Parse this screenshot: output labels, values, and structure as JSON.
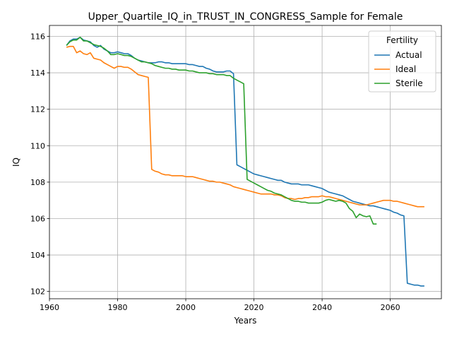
{
  "chart_data": {
    "type": "line",
    "title": "Upper_Quartile_IQ_in_TRUST_IN_CONGRESS_Sample for Female",
    "xlabel": "Years",
    "ylabel": "IQ",
    "xlim": [
      1960,
      2075
    ],
    "ylim": [
      101.6,
      116.6
    ],
    "xticks": [
      1960,
      1980,
      2000,
      2020,
      2040,
      2060
    ],
    "yticks": [
      102,
      104,
      106,
      108,
      110,
      112,
      114,
      116
    ],
    "grid": true,
    "legend": {
      "title": "Fertility",
      "placement": "top-right"
    },
    "series": [
      {
        "name": "Actual",
        "color": "#1f77b4",
        "points": [
          [
            1965,
            115.5
          ],
          [
            1966,
            115.75
          ],
          [
            1967,
            115.85
          ],
          [
            1968,
            115.85
          ],
          [
            1969,
            115.95
          ],
          [
            1970,
            115.8
          ],
          [
            1971,
            115.75
          ],
          [
            1972,
            115.7
          ],
          [
            1973,
            115.5
          ],
          [
            1974,
            115.4
          ],
          [
            1975,
            115.5
          ],
          [
            1976,
            115.3
          ],
          [
            1977,
            115.2
          ],
          [
            1978,
            115.1
          ],
          [
            1979,
            115.1
          ],
          [
            1980,
            115.15
          ],
          [
            1981,
            115.1
          ],
          [
            1982,
            115.05
          ],
          [
            1983,
            115.05
          ],
          [
            1984,
            114.95
          ],
          [
            1985,
            114.8
          ],
          [
            1986,
            114.7
          ],
          [
            1987,
            114.65
          ],
          [
            1988,
            114.6
          ],
          [
            1989,
            114.55
          ],
          [
            1990,
            114.55
          ],
          [
            1991,
            114.55
          ],
          [
            1992,
            114.6
          ],
          [
            1993,
            114.6
          ],
          [
            1994,
            114.55
          ],
          [
            1995,
            114.55
          ],
          [
            1996,
            114.5
          ],
          [
            1997,
            114.5
          ],
          [
            1998,
            114.5
          ],
          [
            1999,
            114.5
          ],
          [
            2000,
            114.5
          ],
          [
            2001,
            114.45
          ],
          [
            2002,
            114.45
          ],
          [
            2003,
            114.4
          ],
          [
            2004,
            114.35
          ],
          [
            2005,
            114.35
          ],
          [
            2006,
            114.25
          ],
          [
            2007,
            114.2
          ],
          [
            2008,
            114.1
          ],
          [
            2009,
            114.05
          ],
          [
            2010,
            114.05
          ],
          [
            2011,
            114.05
          ],
          [
            2012,
            114.1
          ],
          [
            2013,
            114.1
          ],
          [
            2014,
            113.95
          ],
          [
            2015,
            108.95
          ],
          [
            2016,
            108.85
          ],
          [
            2017,
            108.75
          ],
          [
            2018,
            108.65
          ],
          [
            2019,
            108.55
          ],
          [
            2020,
            108.45
          ],
          [
            2021,
            108.4
          ],
          [
            2022,
            108.35
          ],
          [
            2023,
            108.3
          ],
          [
            2024,
            108.25
          ],
          [
            2025,
            108.2
          ],
          [
            2026,
            108.15
          ],
          [
            2027,
            108.1
          ],
          [
            2028,
            108.1
          ],
          [
            2029,
            108.0
          ],
          [
            2030,
            107.95
          ],
          [
            2031,
            107.9
          ],
          [
            2032,
            107.9
          ],
          [
            2033,
            107.9
          ],
          [
            2034,
            107.85
          ],
          [
            2035,
            107.85
          ],
          [
            2036,
            107.85
          ],
          [
            2037,
            107.8
          ],
          [
            2038,
            107.75
          ],
          [
            2039,
            107.7
          ],
          [
            2040,
            107.65
          ],
          [
            2041,
            107.55
          ],
          [
            2042,
            107.45
          ],
          [
            2043,
            107.4
          ],
          [
            2044,
            107.35
          ],
          [
            2045,
            107.3
          ],
          [
            2046,
            107.25
          ],
          [
            2047,
            107.15
          ],
          [
            2048,
            107.05
          ],
          [
            2049,
            106.95
          ],
          [
            2050,
            106.9
          ],
          [
            2051,
            106.85
          ],
          [
            2052,
            106.8
          ],
          [
            2053,
            106.75
          ],
          [
            2054,
            106.7
          ],
          [
            2055,
            106.7
          ],
          [
            2056,
            106.65
          ],
          [
            2057,
            106.6
          ],
          [
            2058,
            106.55
          ],
          [
            2059,
            106.5
          ],
          [
            2060,
            106.45
          ],
          [
            2061,
            106.35
          ],
          [
            2062,
            106.3
          ],
          [
            2063,
            106.2
          ],
          [
            2064,
            106.15
          ],
          [
            2065,
            102.45
          ],
          [
            2066,
            102.4
          ],
          [
            2067,
            102.35
          ],
          [
            2068,
            102.35
          ],
          [
            2069,
            102.3
          ],
          [
            2070,
            102.3
          ]
        ]
      },
      {
        "name": "Ideal",
        "color": "#ff7f0e",
        "points": [
          [
            1965,
            115.4
          ],
          [
            1966,
            115.45
          ],
          [
            1967,
            115.45
          ],
          [
            1968,
            115.1
          ],
          [
            1969,
            115.2
          ],
          [
            1970,
            115.05
          ],
          [
            1971,
            115.0
          ],
          [
            1972,
            115.1
          ],
          [
            1973,
            114.8
          ],
          [
            1974,
            114.75
          ],
          [
            1975,
            114.7
          ],
          [
            1976,
            114.55
          ],
          [
            1977,
            114.45
          ],
          [
            1978,
            114.35
          ],
          [
            1979,
            114.25
          ],
          [
            1980,
            114.35
          ],
          [
            1981,
            114.35
          ],
          [
            1982,
            114.3
          ],
          [
            1983,
            114.3
          ],
          [
            1984,
            114.2
          ],
          [
            1985,
            114.05
          ],
          [
            1986,
            113.9
          ],
          [
            1987,
            113.85
          ],
          [
            1988,
            113.8
          ],
          [
            1989,
            113.75
          ],
          [
            1990,
            108.7
          ],
          [
            1991,
            108.6
          ],
          [
            1992,
            108.55
          ],
          [
            1993,
            108.45
          ],
          [
            1994,
            108.4
          ],
          [
            1995,
            108.4
          ],
          [
            1996,
            108.35
          ],
          [
            1997,
            108.35
          ],
          [
            1998,
            108.35
          ],
          [
            1999,
            108.35
          ],
          [
            2000,
            108.3
          ],
          [
            2001,
            108.3
          ],
          [
            2002,
            108.3
          ],
          [
            2003,
            108.25
          ],
          [
            2004,
            108.2
          ],
          [
            2005,
            108.15
          ],
          [
            2006,
            108.1
          ],
          [
            2007,
            108.05
          ],
          [
            2008,
            108.05
          ],
          [
            2009,
            108.0
          ],
          [
            2010,
            108.0
          ],
          [
            2011,
            107.95
          ],
          [
            2012,
            107.9
          ],
          [
            2013,
            107.85
          ],
          [
            2014,
            107.75
          ],
          [
            2015,
            107.7
          ],
          [
            2016,
            107.65
          ],
          [
            2017,
            107.6
          ],
          [
            2018,
            107.55
          ],
          [
            2019,
            107.5
          ],
          [
            2020,
            107.45
          ],
          [
            2021,
            107.4
          ],
          [
            2022,
            107.35
          ],
          [
            2023,
            107.35
          ],
          [
            2024,
            107.35
          ],
          [
            2025,
            107.35
          ],
          [
            2026,
            107.3
          ],
          [
            2027,
            107.3
          ],
          [
            2028,
            107.25
          ],
          [
            2029,
            107.15
          ],
          [
            2030,
            107.1
          ],
          [
            2031,
            107.1
          ],
          [
            2032,
            107.05
          ],
          [
            2033,
            107.1
          ],
          [
            2034,
            107.1
          ],
          [
            2035,
            107.15
          ],
          [
            2036,
            107.15
          ],
          [
            2037,
            107.2
          ],
          [
            2038,
            107.2
          ],
          [
            2039,
            107.2
          ],
          [
            2040,
            107.25
          ],
          [
            2041,
            107.2
          ],
          [
            2042,
            107.2
          ],
          [
            2043,
            107.15
          ],
          [
            2044,
            107.1
          ],
          [
            2045,
            107.05
          ],
          [
            2046,
            107.0
          ],
          [
            2047,
            106.95
          ],
          [
            2048,
            106.9
          ],
          [
            2049,
            106.85
          ],
          [
            2050,
            106.8
          ],
          [
            2051,
            106.75
          ],
          [
            2052,
            106.75
          ],
          [
            2053,
            106.75
          ],
          [
            2054,
            106.8
          ],
          [
            2055,
            106.85
          ],
          [
            2056,
            106.9
          ],
          [
            2057,
            106.95
          ],
          [
            2058,
            107.0
          ],
          [
            2059,
            107.0
          ],
          [
            2060,
            107.0
          ],
          [
            2061,
            106.95
          ],
          [
            2062,
            106.95
          ],
          [
            2063,
            106.9
          ],
          [
            2064,
            106.85
          ],
          [
            2065,
            106.8
          ],
          [
            2066,
            106.75
          ],
          [
            2067,
            106.7
          ],
          [
            2068,
            106.65
          ],
          [
            2069,
            106.65
          ],
          [
            2070,
            106.65
          ]
        ]
      },
      {
        "name": "Sterile",
        "color": "#2ca02c",
        "points": [
          [
            1965,
            115.5
          ],
          [
            1966,
            115.7
          ],
          [
            1967,
            115.8
          ],
          [
            1968,
            115.8
          ],
          [
            1969,
            115.95
          ],
          [
            1970,
            115.75
          ],
          [
            1971,
            115.75
          ],
          [
            1972,
            115.65
          ],
          [
            1973,
            115.55
          ],
          [
            1974,
            115.5
          ],
          [
            1975,
            115.45
          ],
          [
            1976,
            115.35
          ],
          [
            1977,
            115.2
          ],
          [
            1978,
            115.0
          ],
          [
            1979,
            115.0
          ],
          [
            1980,
            115.05
          ],
          [
            1981,
            115.0
          ],
          [
            1982,
            114.95
          ],
          [
            1983,
            114.95
          ],
          [
            1984,
            114.9
          ],
          [
            1985,
            114.8
          ],
          [
            1986,
            114.7
          ],
          [
            1987,
            114.6
          ],
          [
            1988,
            114.6
          ],
          [
            1989,
            114.55
          ],
          [
            1990,
            114.5
          ],
          [
            1991,
            114.4
          ],
          [
            1992,
            114.35
          ],
          [
            1993,
            114.3
          ],
          [
            1994,
            114.25
          ],
          [
            1995,
            114.25
          ],
          [
            1996,
            114.2
          ],
          [
            1997,
            114.2
          ],
          [
            1998,
            114.15
          ],
          [
            1999,
            114.15
          ],
          [
            2000,
            114.15
          ],
          [
            2001,
            114.1
          ],
          [
            2002,
            114.1
          ],
          [
            2003,
            114.05
          ],
          [
            2004,
            114.0
          ],
          [
            2005,
            114.0
          ],
          [
            2006,
            114.0
          ],
          [
            2007,
            113.95
          ],
          [
            2008,
            113.95
          ],
          [
            2009,
            113.9
          ],
          [
            2010,
            113.9
          ],
          [
            2011,
            113.9
          ],
          [
            2012,
            113.85
          ],
          [
            2013,
            113.85
          ],
          [
            2014,
            113.7
          ],
          [
            2015,
            113.6
          ],
          [
            2016,
            113.5
          ],
          [
            2017,
            113.4
          ],
          [
            2018,
            108.15
          ],
          [
            2019,
            108.05
          ],
          [
            2020,
            107.95
          ],
          [
            2021,
            107.85
          ],
          [
            2022,
            107.75
          ],
          [
            2023,
            107.65
          ],
          [
            2024,
            107.55
          ],
          [
            2025,
            107.5
          ],
          [
            2026,
            107.4
          ],
          [
            2027,
            107.35
          ],
          [
            2028,
            107.3
          ],
          [
            2029,
            107.2
          ],
          [
            2030,
            107.1
          ],
          [
            2031,
            107.0
          ],
          [
            2032,
            106.95
          ],
          [
            2033,
            106.95
          ],
          [
            2034,
            106.9
          ],
          [
            2035,
            106.9
          ],
          [
            2036,
            106.85
          ],
          [
            2037,
            106.85
          ],
          [
            2038,
            106.85
          ],
          [
            2039,
            106.85
          ],
          [
            2040,
            106.9
          ],
          [
            2041,
            107.0
          ],
          [
            2042,
            107.05
          ],
          [
            2043,
            107.0
          ],
          [
            2044,
            106.95
          ],
          [
            2045,
            107.0
          ],
          [
            2046,
            106.95
          ],
          [
            2047,
            106.85
          ],
          [
            2048,
            106.55
          ],
          [
            2049,
            106.4
          ],
          [
            2050,
            106.05
          ],
          [
            2051,
            106.25
          ],
          [
            2052,
            106.15
          ],
          [
            2053,
            106.1
          ],
          [
            2054,
            106.15
          ],
          [
            2055,
            105.7
          ],
          [
            2056,
            105.7
          ]
        ]
      }
    ]
  }
}
